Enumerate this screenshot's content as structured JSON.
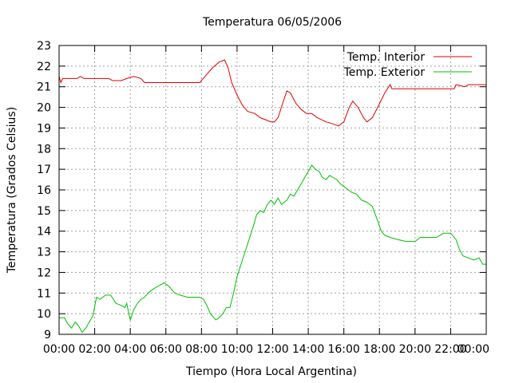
{
  "chart_data": {
    "type": "line",
    "title": "Temperatura 06/05/2006",
    "xlabel": "Tiempo (Hora Local Argentina)",
    "ylabel": "Temperatura (Grados Celsius)",
    "xlim": [
      0,
      24
    ],
    "ylim": [
      9,
      23
    ],
    "x_ticks": [
      {
        "value": 0,
        "label": "00:00"
      },
      {
        "value": 2,
        "label": "02:00"
      },
      {
        "value": 4,
        "label": "04:00"
      },
      {
        "value": 6,
        "label": "06:00"
      },
      {
        "value": 8,
        "label": "08:00"
      },
      {
        "value": 10,
        "label": "10:00"
      },
      {
        "value": 12,
        "label": "12:00"
      },
      {
        "value": 14,
        "label": "14:00"
      },
      {
        "value": 16,
        "label": "16:00"
      },
      {
        "value": 18,
        "label": "18:00"
      },
      {
        "value": 20,
        "label": "20:00"
      },
      {
        "value": 22,
        "label": "22:00"
      },
      {
        "value": 24,
        "label": "00:00"
      }
    ],
    "y_ticks": [
      9,
      10,
      11,
      12,
      13,
      14,
      15,
      16,
      17,
      18,
      19,
      20,
      21,
      22,
      23
    ],
    "grid": true,
    "legend_position": "top-right",
    "series": [
      {
        "name": "Temp. Interior",
        "color": "#e00000",
        "points": [
          [
            0.0,
            21.5
          ],
          [
            0.1,
            21.2
          ],
          [
            0.2,
            21.4
          ],
          [
            1.0,
            21.4
          ],
          [
            1.2,
            21.5
          ],
          [
            1.4,
            21.4
          ],
          [
            2.0,
            21.4
          ],
          [
            2.8,
            21.4
          ],
          [
            3.0,
            21.3
          ],
          [
            3.5,
            21.3
          ],
          [
            3.8,
            21.4
          ],
          [
            4.2,
            21.5
          ],
          [
            4.6,
            21.4
          ],
          [
            4.8,
            21.2
          ],
          [
            5.2,
            21.2
          ],
          [
            6.0,
            21.2
          ],
          [
            7.0,
            21.2
          ],
          [
            7.9,
            21.2
          ],
          [
            8.3,
            21.6
          ],
          [
            8.6,
            21.9
          ],
          [
            9.0,
            22.2
          ],
          [
            9.3,
            22.3
          ],
          [
            9.5,
            21.9
          ],
          [
            9.7,
            21.2
          ],
          [
            10.0,
            20.6
          ],
          [
            10.3,
            20.1
          ],
          [
            10.6,
            19.8
          ],
          [
            11.0,
            19.7
          ],
          [
            11.3,
            19.5
          ],
          [
            11.6,
            19.4
          ],
          [
            11.9,
            19.3
          ],
          [
            12.1,
            19.3
          ],
          [
            12.3,
            19.5
          ],
          [
            12.6,
            20.3
          ],
          [
            12.8,
            20.8
          ],
          [
            13.0,
            20.7
          ],
          [
            13.3,
            20.2
          ],
          [
            13.6,
            19.9
          ],
          [
            13.9,
            19.7
          ],
          [
            14.2,
            19.7
          ],
          [
            14.5,
            19.5
          ],
          [
            15.0,
            19.3
          ],
          [
            15.4,
            19.2
          ],
          [
            15.7,
            19.1
          ],
          [
            16.0,
            19.3
          ],
          [
            16.3,
            20.0
          ],
          [
            16.5,
            20.3
          ],
          [
            16.8,
            20.0
          ],
          [
            17.1,
            19.5
          ],
          [
            17.3,
            19.3
          ],
          [
            17.6,
            19.5
          ],
          [
            17.9,
            20.0
          ],
          [
            18.3,
            20.7
          ],
          [
            18.6,
            21.1
          ],
          [
            18.7,
            20.9
          ],
          [
            19.5,
            20.9
          ],
          [
            20.5,
            20.9
          ],
          [
            21.5,
            20.9
          ],
          [
            22.2,
            20.9
          ],
          [
            22.3,
            21.1
          ],
          [
            22.8,
            21.0
          ],
          [
            23.0,
            21.1
          ],
          [
            24.0,
            21.1
          ]
        ]
      },
      {
        "name": "Temp. Exterior",
        "color": "#00c000",
        "points": [
          [
            0.0,
            9.8
          ],
          [
            0.3,
            9.8
          ],
          [
            0.5,
            9.5
          ],
          [
            0.7,
            9.3
          ],
          [
            0.9,
            9.6
          ],
          [
            1.1,
            9.4
          ],
          [
            1.3,
            9.1
          ],
          [
            1.5,
            9.3
          ],
          [
            1.7,
            9.6
          ],
          [
            1.9,
            9.9
          ],
          [
            2.1,
            10.8
          ],
          [
            2.3,
            10.7
          ],
          [
            2.6,
            10.9
          ],
          [
            2.9,
            10.9
          ],
          [
            3.2,
            10.5
          ],
          [
            3.5,
            10.4
          ],
          [
            3.7,
            10.3
          ],
          [
            3.8,
            10.5
          ],
          [
            3.9,
            10.1
          ],
          [
            4.0,
            9.7
          ],
          [
            4.2,
            10.2
          ],
          [
            4.4,
            10.5
          ],
          [
            4.6,
            10.7
          ],
          [
            4.8,
            10.8
          ],
          [
            5.0,
            11.0
          ],
          [
            5.3,
            11.2
          ],
          [
            5.7,
            11.4
          ],
          [
            5.9,
            11.5
          ],
          [
            6.2,
            11.3
          ],
          [
            6.5,
            11.0
          ],
          [
            6.8,
            10.9
          ],
          [
            7.2,
            10.8
          ],
          [
            7.6,
            10.8
          ],
          [
            7.9,
            10.8
          ],
          [
            8.1,
            10.7
          ],
          [
            8.3,
            10.4
          ],
          [
            8.5,
            10.0
          ],
          [
            8.8,
            9.7
          ],
          [
            9.0,
            9.8
          ],
          [
            9.2,
            10.0
          ],
          [
            9.4,
            10.3
          ],
          [
            9.6,
            10.3
          ],
          [
            9.8,
            11.0
          ],
          [
            10.0,
            11.8
          ],
          [
            10.3,
            12.6
          ],
          [
            10.6,
            13.4
          ],
          [
            10.9,
            14.2
          ],
          [
            11.1,
            14.8
          ],
          [
            11.3,
            15.0
          ],
          [
            11.5,
            14.9
          ],
          [
            11.7,
            15.3
          ],
          [
            11.9,
            15.5
          ],
          [
            12.1,
            15.3
          ],
          [
            12.3,
            15.6
          ],
          [
            12.5,
            15.3
          ],
          [
            12.8,
            15.5
          ],
          [
            13.0,
            15.8
          ],
          [
            13.2,
            15.7
          ],
          [
            13.4,
            16.0
          ],
          [
            13.6,
            16.3
          ],
          [
            13.8,
            16.6
          ],
          [
            14.0,
            16.9
          ],
          [
            14.2,
            17.2
          ],
          [
            14.4,
            17.0
          ],
          [
            14.6,
            16.9
          ],
          [
            14.8,
            16.6
          ],
          [
            15.0,
            16.5
          ],
          [
            15.2,
            16.7
          ],
          [
            15.4,
            16.6
          ],
          [
            15.6,
            16.5
          ],
          [
            15.8,
            16.3
          ],
          [
            16.1,
            16.1
          ],
          [
            16.4,
            15.9
          ],
          [
            16.7,
            15.8
          ],
          [
            17.0,
            15.5
          ],
          [
            17.3,
            15.4
          ],
          [
            17.6,
            15.2
          ],
          [
            17.9,
            14.5
          ],
          [
            18.1,
            14.0
          ],
          [
            18.3,
            13.8
          ],
          [
            18.6,
            13.7
          ],
          [
            19.0,
            13.6
          ],
          [
            19.5,
            13.5
          ],
          [
            20.0,
            13.5
          ],
          [
            20.3,
            13.7
          ],
          [
            20.8,
            13.7
          ],
          [
            21.2,
            13.7
          ],
          [
            21.4,
            13.8
          ],
          [
            21.6,
            13.9
          ],
          [
            22.0,
            13.9
          ],
          [
            22.3,
            13.6
          ],
          [
            22.5,
            13.1
          ],
          [
            22.7,
            12.8
          ],
          [
            23.0,
            12.7
          ],
          [
            23.3,
            12.6
          ],
          [
            23.6,
            12.7
          ],
          [
            23.8,
            12.4
          ],
          [
            24.0,
            12.4
          ]
        ]
      }
    ]
  }
}
